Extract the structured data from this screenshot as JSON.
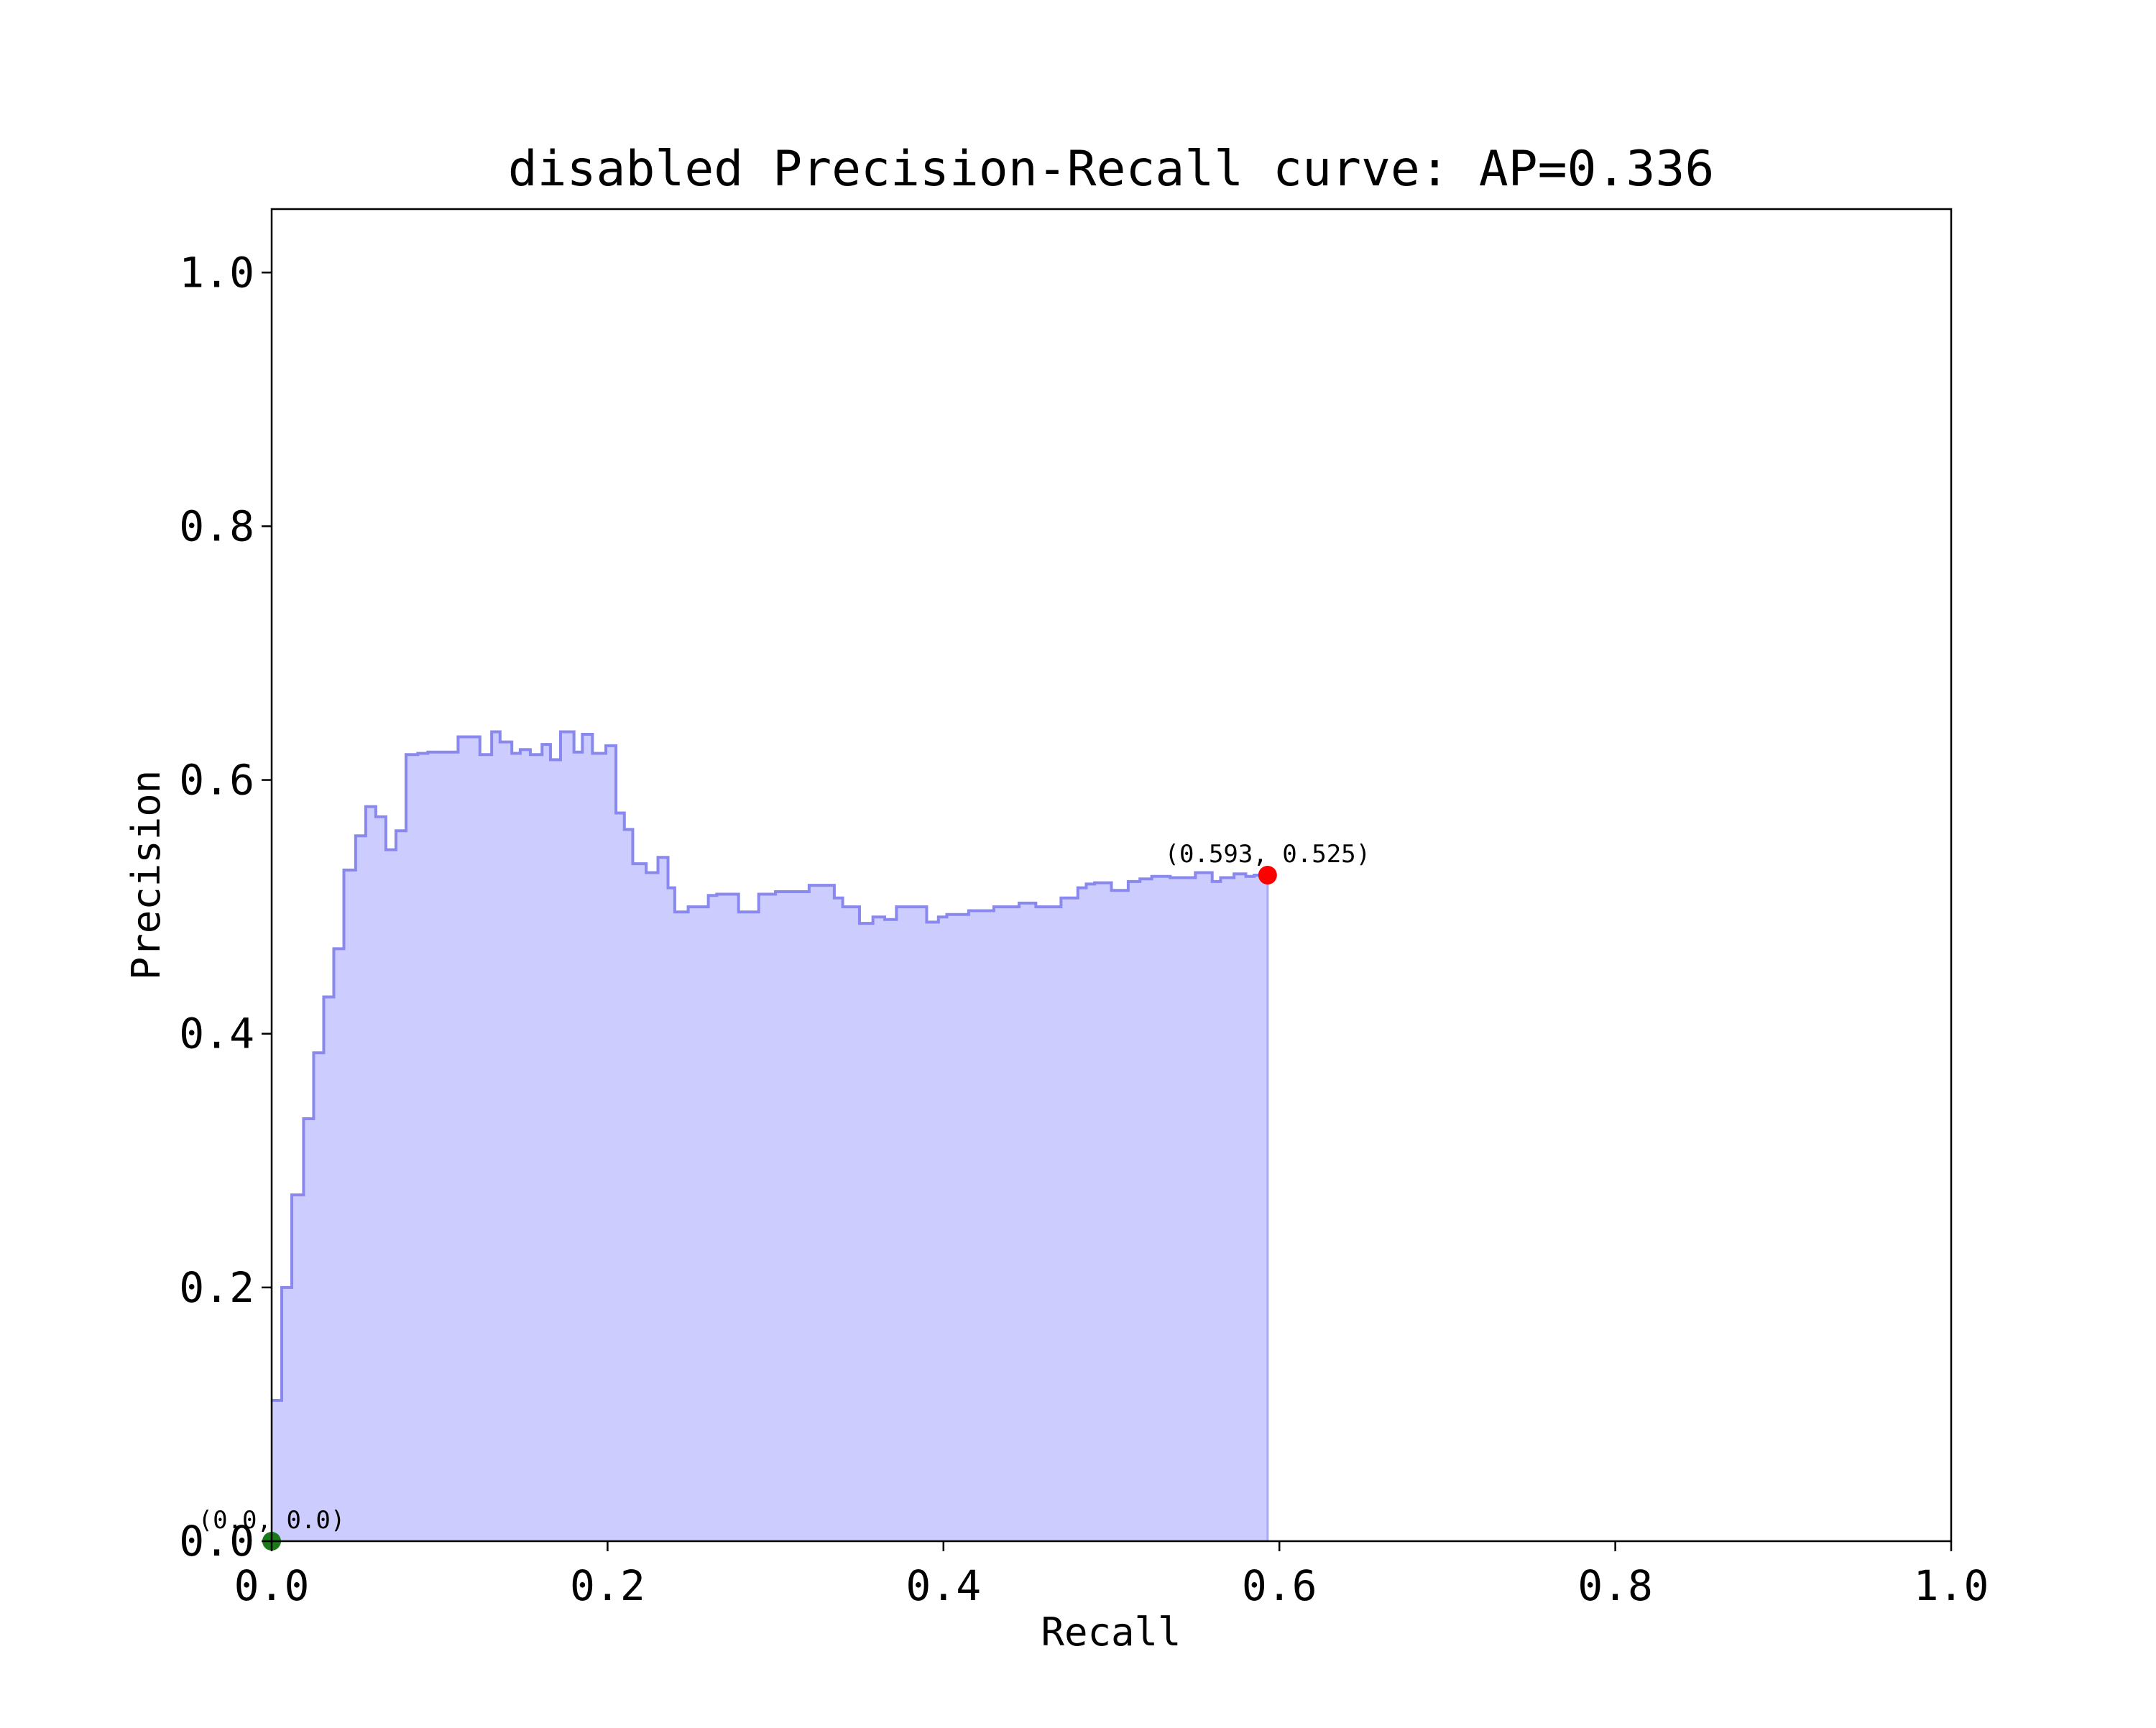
{
  "chart_data": {
    "type": "area",
    "step": "post",
    "title": "disabled Precision-Recall curve: AP=0.336",
    "xlabel": "Recall",
    "ylabel": "Precision",
    "xlim": [
      0.0,
      1.0
    ],
    "ylim": [
      0.0,
      1.05
    ],
    "grid": false,
    "x_ticks": [
      "0.0",
      "0.2",
      "0.4",
      "0.6",
      "0.8",
      "1.0"
    ],
    "y_ticks": [
      "0.0",
      "0.2",
      "0.4",
      "0.6",
      "0.8",
      "1.0"
    ],
    "colors": {
      "line": "#8888ee",
      "fill": "#ccccff",
      "end_point": "#ff0000",
      "start_point": "#1a7a1a"
    },
    "series": [
      {
        "x": [
          0.0,
          0.006,
          0.012,
          0.019,
          0.025,
          0.031,
          0.037,
          0.043,
          0.05,
          0.056,
          0.062,
          0.068,
          0.074,
          0.08,
          0.087,
          0.093,
          0.099,
          0.111,
          0.124,
          0.131,
          0.136,
          0.143,
          0.148,
          0.154,
          0.161,
          0.166,
          0.172,
          0.18,
          0.185,
          0.191,
          0.199,
          0.205,
          0.21,
          0.215,
          0.223,
          0.23,
          0.236,
          0.24,
          0.248,
          0.26,
          0.265,
          0.278,
          0.29,
          0.3,
          0.32,
          0.335,
          0.34,
          0.35,
          0.358,
          0.365,
          0.372,
          0.378,
          0.39,
          0.397,
          0.402,
          0.415,
          0.43,
          0.445,
          0.455,
          0.47,
          0.48,
          0.485,
          0.49,
          0.5,
          0.51,
          0.517,
          0.524,
          0.535,
          0.55,
          0.56,
          0.565,
          0.573,
          0.58,
          0.585,
          0.593
        ],
        "y": [
          0.111,
          0.2,
          0.273,
          0.333,
          0.385,
          0.429,
          0.467,
          0.529,
          0.556,
          0.579,
          0.571,
          0.545,
          0.56,
          0.62,
          0.621,
          0.622,
          0.622,
          0.634,
          0.62,
          0.638,
          0.63,
          0.621,
          0.624,
          0.62,
          0.628,
          0.616,
          0.638,
          0.622,
          0.636,
          0.621,
          0.627,
          0.574,
          0.561,
          0.534,
          0.527,
          0.539,
          0.515,
          0.496,
          0.5,
          0.509,
          0.51,
          0.496,
          0.51,
          0.512,
          0.517,
          0.507,
          0.5,
          0.487,
          0.492,
          0.49,
          0.5,
          0.5,
          0.488,
          0.492,
          0.494,
          0.497,
          0.5,
          0.503,
          0.5,
          0.507,
          0.515,
          0.518,
          0.519,
          0.513,
          0.52,
          0.522,
          0.524,
          0.523,
          0.527,
          0.52,
          0.523,
          0.526,
          0.524,
          0.525,
          0.525
        ]
      }
    ],
    "annotations": [
      {
        "label": "(0.593, 0.525)",
        "x": 0.593,
        "y": 0.525,
        "marker": "end"
      },
      {
        "label": "(0.0, 0.0)",
        "x": 0.0,
        "y": 0.0,
        "marker": "start"
      }
    ]
  }
}
